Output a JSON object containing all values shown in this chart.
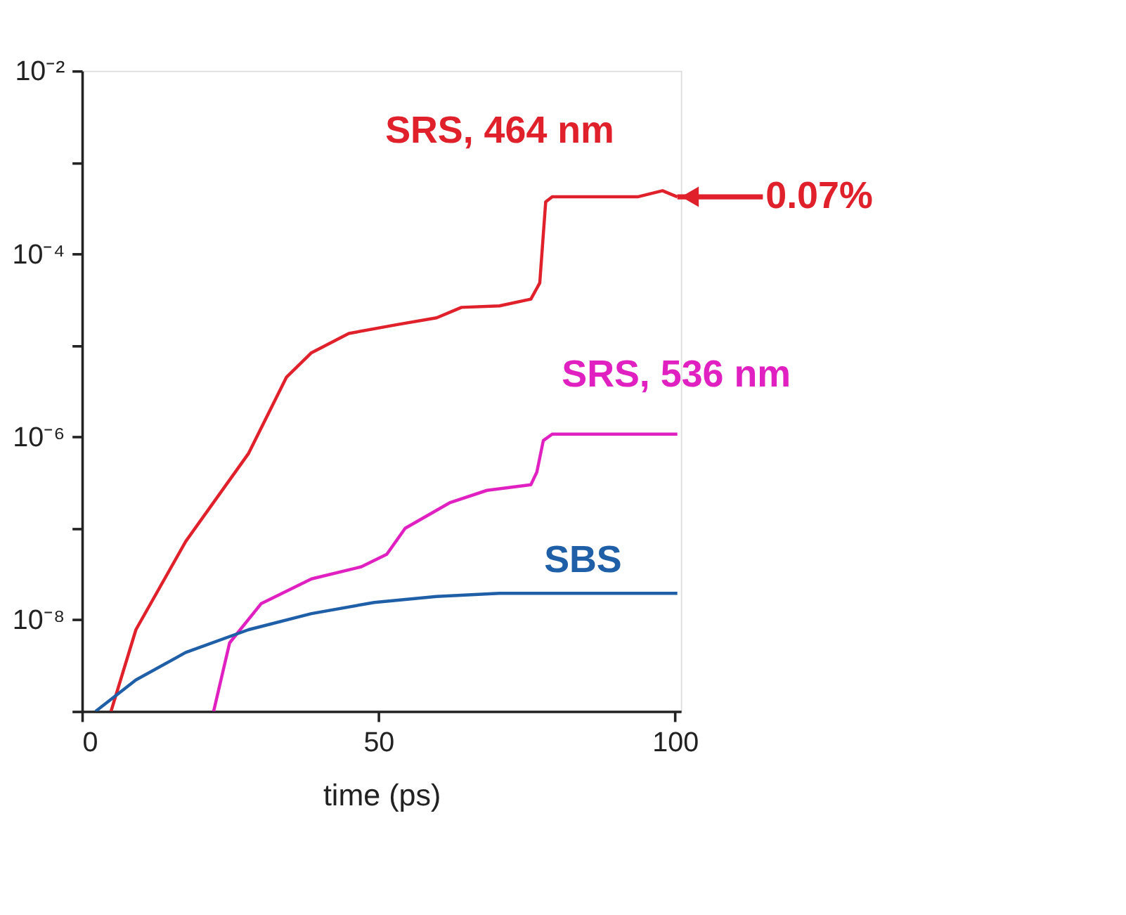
{
  "chart_data": {
    "type": "line",
    "xlabel": "time  (ps)",
    "xlim": [
      0,
      101
    ],
    "xticks": [
      0,
      50,
      100
    ],
    "ylim": [
      1e-09,
      0.01
    ],
    "log": "y",
    "yticks": [
      {
        "value": 0.01,
        "label": "10⁻²"
      },
      {
        "value": 0.001,
        "label": null
      },
      {
        "value": 0.0001,
        "label": "10⁻⁴"
      },
      {
        "value": 1e-05,
        "label": null
      },
      {
        "value": 1e-06,
        "label": "10⁻⁶"
      },
      {
        "value": 1e-07,
        "label": null
      },
      {
        "value": 1e-08,
        "label": "10⁻⁸"
      },
      {
        "value": 1e-09,
        "label": null
      }
    ],
    "grid": false,
    "legend": false,
    "marker": "none",
    "line_style": "solid",
    "series": [
      {
        "name": "SRS, 464 nm",
        "color": "#e0202a",
        "x": [
          4.9,
          9.1,
          17.5,
          28.1,
          34.5,
          38.7,
          45,
          53.5,
          59.8,
          64,
          70.4,
          75.7,
          77.2,
          78.2,
          79.3,
          93.7,
          97.9,
          100.4
        ],
        "values": [
          1e-09,
          7.8e-09,
          7.2e-08,
          6.6e-07,
          4.5e-06,
          8.3e-06,
          1.35e-05,
          1.7e-05,
          2e-05,
          2.6e-05,
          2.7e-05,
          3.2e-05,
          4.8e-05,
          0.00037,
          0.00042,
          0.00042,
          0.00049,
          0.00042
        ]
      },
      {
        "name": "SRS, 536 nm",
        "color": "#e020c0",
        "x": [
          22.2,
          24.9,
          30.2,
          38.7,
          47.1,
          51.4,
          54.5,
          62,
          68.3,
          75.7,
          76.7,
          77.8,
          79.3,
          100.4
        ],
        "values": [
          1e-09,
          5.6e-09,
          1.5e-08,
          2.8e-08,
          3.8e-08,
          5.2e-08,
          1e-07,
          1.9e-07,
          2.6e-07,
          3e-07,
          4.1e-07,
          9.1e-07,
          1.07e-06,
          1.07e-06
        ]
      },
      {
        "name": "SBS",
        "color": "#1f5fa8",
        "x": [
          2.3,
          9.1,
          17.5,
          28.1,
          38.7,
          49.3,
          59.8,
          70.4,
          100.4
        ],
        "values": [
          1e-09,
          2.2e-09,
          4.4e-09,
          7.8e-09,
          1.17e-08,
          1.55e-08,
          1.8e-08,
          1.95e-08,
          1.95e-08
        ]
      }
    ],
    "annotations": [
      {
        "text": "0.07%",
        "x": 100.4,
        "y": 0.00042
      }
    ]
  }
}
